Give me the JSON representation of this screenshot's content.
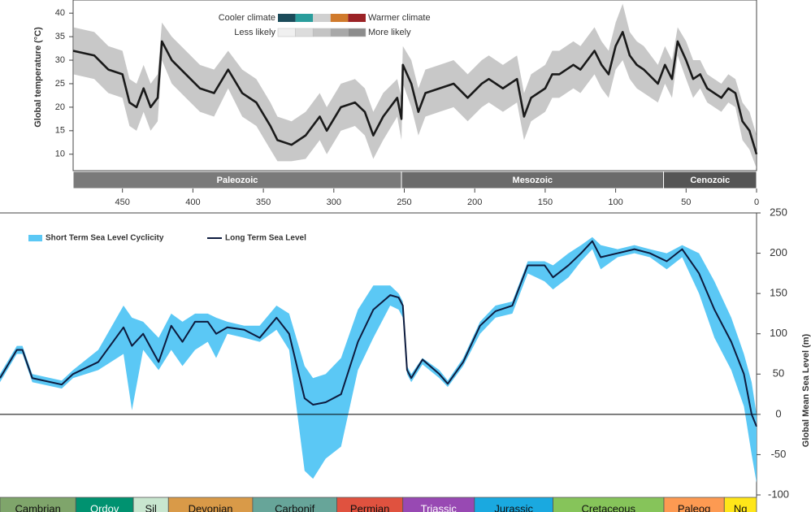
{
  "chart_data": [
    {
      "type": "band_line",
      "ylabel": "Global temperature (°C)",
      "xlim": [
        485,
        0
      ],
      "ylim": [
        6.5,
        42.8
      ],
      "xticks": [
        450,
        400,
        350,
        300,
        250,
        200,
        150,
        100,
        50,
        0
      ],
      "yticks": [
        10,
        15,
        20,
        25,
        30,
        35,
        40
      ],
      "legend": {
        "cooler": "Cooler climate",
        "warmer": "Warmer climate",
        "less": "Less likely",
        "more": "More likely",
        "climate_colors": [
          "#1b4b5a",
          "#2a9d9c",
          "#d0d0d0",
          "#d07a2c",
          "#9b2226"
        ],
        "likelihood_colors": [
          "#f0f0f0",
          "#dcdcdc",
          "#c4c4c4",
          "#a8a8a8",
          "#8c8c8c"
        ]
      },
      "eras": [
        {
          "name": "Paleozoic",
          "start": 485,
          "end": 252,
          "color": "#7a7a7a"
        },
        {
          "name": "Mesozoic",
          "start": 252,
          "end": 66,
          "color": "#6b6b6b"
        },
        {
          "name": "Cenozoic",
          "start": 66,
          "end": 0,
          "color": "#555555"
        }
      ],
      "x": [
        485,
        470,
        460,
        450,
        445,
        440,
        435,
        430,
        425,
        422,
        415,
        405,
        395,
        385,
        375,
        365,
        355,
        345,
        340,
        330,
        320,
        310,
        305,
        295,
        285,
        278,
        272,
        265,
        255,
        252,
        251,
        245,
        240,
        235,
        225,
        215,
        205,
        195,
        190,
        180,
        170,
        165,
        160,
        150,
        145,
        140,
        130,
        125,
        115,
        110,
        105,
        100,
        95,
        90,
        85,
        80,
        70,
        65,
        60,
        56,
        50,
        45,
        40,
        35,
        30,
        25,
        20,
        15,
        10,
        5,
        0
      ],
      "series": [
        {
          "color": "#1a1a1a",
          "band_color": "#9a9a9a",
          "values": [
            32,
            31,
            28,
            27,
            21,
            20,
            24,
            20,
            22,
            34,
            30,
            27,
            24,
            23,
            28,
            23,
            21,
            16,
            13,
            12,
            14,
            18,
            15,
            20,
            21,
            19,
            14,
            18,
            22,
            17.5,
            29,
            25,
            19,
            23,
            24,
            25,
            22,
            25,
            26,
            24,
            26,
            18,
            22,
            24,
            27,
            27,
            29,
            28,
            32,
            29,
            27,
            33,
            36,
            31,
            29,
            28,
            25,
            29,
            26,
            34,
            30,
            26,
            27,
            24,
            23,
            22,
            24,
            23,
            17,
            15,
            10
          ],
          "high": [
            37,
            36,
            33,
            32,
            26,
            25,
            29,
            25,
            27,
            38,
            35,
            32,
            29,
            28,
            32,
            28,
            26,
            21,
            18,
            17,
            19,
            23,
            20,
            25,
            26,
            24,
            19,
            23,
            26,
            22,
            33,
            30,
            24,
            28,
            29,
            30,
            27,
            30,
            31,
            29,
            31,
            23,
            27,
            29,
            32,
            32,
            34,
            33,
            37,
            34,
            32,
            38,
            42,
            36,
            34,
            33,
            29,
            33,
            30,
            37,
            34,
            30,
            30,
            27,
            26,
            25,
            27,
            26,
            21,
            19,
            14
          ],
          "low": [
            27,
            26,
            23,
            22,
            16,
            15,
            19,
            15,
            17,
            30,
            25,
            22,
            19,
            18,
            24,
            18,
            16,
            11,
            8.5,
            8.5,
            9,
            13,
            10,
            15,
            16,
            14,
            9,
            13,
            18,
            13,
            25,
            20,
            14,
            18,
            19,
            20,
            17,
            20,
            21,
            19,
            21,
            13,
            17,
            19,
            22,
            22,
            24,
            23,
            27,
            24,
            22,
            28,
            30,
            26,
            24,
            23,
            21,
            25,
            22,
            31,
            26,
            22,
            24,
            21,
            20,
            19,
            21,
            20,
            13,
            11,
            7
          ]
        }
      ]
    },
    {
      "type": "sea_level",
      "ylabel": "Global Mean Sea Level (m)",
      "xlim": [
        539,
        0
      ],
      "ylim": [
        -100,
        250
      ],
      "yticks": [
        -100,
        -50,
        0,
        50,
        100,
        150,
        200,
        250
      ],
      "periods": [
        {
          "name": "Cambrian",
          "start": 539,
          "end": 485,
          "color": "#7fa56b",
          "text_color": "#111"
        },
        {
          "name": "Ordov",
          "start": 485,
          "end": 444,
          "color": "#009270",
          "text_color": "#fff"
        },
        {
          "name": "Sil",
          "start": 444,
          "end": 419,
          "color": "#c8e6cf",
          "text_color": "#111"
        },
        {
          "name": "Devonian",
          "start": 419,
          "end": 359,
          "color": "#d99a48",
          "text_color": "#111"
        },
        {
          "name": "Carbonif",
          "start": 359,
          "end": 299,
          "color": "#67a599",
          "text_color": "#111"
        },
        {
          "name": "Permian",
          "start": 299,
          "end": 252,
          "color": "#e0523f",
          "text_color": "#111"
        },
        {
          "name": "Triassic",
          "start": 252,
          "end": 201,
          "color": "#9849b3",
          "text_color": "#fff"
        },
        {
          "name": "Jurassic",
          "start": 201,
          "end": 145,
          "color": "#1aa9e0",
          "text_color": "#111"
        },
        {
          "name": "Cretaceous",
          "start": 145,
          "end": 66,
          "color": "#86c45a",
          "text_color": "#111"
        },
        {
          "name": "Paleog",
          "start": 66,
          "end": 23,
          "color": "#fd9a52",
          "text_color": "#111"
        },
        {
          "name": "Ng",
          "start": 23,
          "end": 0,
          "color": "#ffe619",
          "text_color": "#111"
        }
      ],
      "x": [
        539,
        527,
        523,
        516,
        495,
        487,
        469,
        451,
        445,
        437,
        426,
        417,
        409,
        400,
        391,
        385,
        377,
        365,
        354,
        342,
        333,
        322,
        316,
        307,
        296,
        284,
        273,
        261,
        255,
        252,
        249,
        246,
        238,
        226,
        220,
        209,
        197,
        186,
        174,
        163,
        151,
        145,
        134,
        125,
        117,
        111,
        99,
        87,
        76,
        64,
        53,
        41,
        30,
        18,
        9,
        3.5,
        0
      ],
      "series": [
        {
          "name": "Short Term Sea Level Cyclicity",
          "color": "#5bc8f5",
          "high": [
            50,
            85,
            85,
            50,
            42,
            55,
            80,
            135,
            120,
            115,
            95,
            125,
            115,
            125,
            125,
            120,
            115,
            110,
            110,
            135,
            125,
            60,
            45,
            50,
            70,
            130,
            160,
            160,
            150,
            140,
            60,
            50,
            70,
            55,
            42,
            70,
            115,
            135,
            140,
            190,
            190,
            185,
            200,
            210,
            220,
            210,
            205,
            210,
            205,
            200,
            210,
            200,
            165,
            120,
            75,
            40,
            0
          ],
          "low": [
            40,
            75,
            75,
            40,
            32,
            45,
            55,
            75,
            5,
            80,
            55,
            80,
            60,
            80,
            90,
            70,
            100,
            95,
            90,
            105,
            80,
            -70,
            -80,
            -55,
            -40,
            55,
            95,
            135,
            130,
            120,
            50,
            40,
            62,
            45,
            34,
            60,
            100,
            120,
            125,
            175,
            165,
            155,
            170,
            190,
            205,
            180,
            195,
            200,
            195,
            180,
            195,
            150,
            95,
            55,
            10,
            -50,
            -85
          ]
        },
        {
          "name": "Long Term Sea Level",
          "color": "#0d1b3e",
          "values": [
            45,
            80,
            80,
            45,
            37,
            50,
            65,
            108,
            85,
            100,
            65,
            110,
            90,
            115,
            115,
            100,
            108,
            105,
            95,
            120,
            100,
            20,
            12,
            15,
            25,
            90,
            130,
            148,
            145,
            135,
            55,
            45,
            68,
            50,
            38,
            65,
            110,
            128,
            135,
            185,
            185,
            170,
            185,
            200,
            215,
            195,
            200,
            205,
            200,
            190,
            205,
            175,
            130,
            90,
            50,
            0,
            -15
          ]
        }
      ]
    }
  ]
}
